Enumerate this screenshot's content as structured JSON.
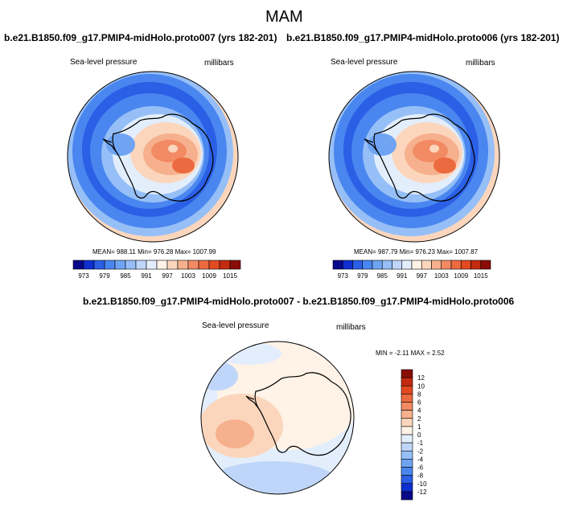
{
  "page": {
    "season": "MAM",
    "left_title": "b.e21.B1850.f09_g17.PMIP4-midHolo.proto007 (yrs 182-201)",
    "right_title": "b.e21.B1850.f09_g17.PMIP4-midHolo.proto006 (yrs 182-201)",
    "diff_title": "b.e21.B1850.f09_g17.PMIP4-midHolo.proto007 - b.e21.B1850.f09_g17.PMIP4-midHolo.proto006"
  },
  "colors": {
    "abs_scale": [
      "#08088a",
      "#0f2fd0",
      "#2a5fe6",
      "#4a86ef",
      "#6fa4f3",
      "#96bff7",
      "#bfd6fa",
      "#e3eefc",
      "#fff2e6",
      "#fbd6bd",
      "#f7b08d",
      "#f28a63",
      "#ec6a3f",
      "#e24a21",
      "#c42a10",
      "#8a0d05"
    ],
    "diff_scale": [
      "#08088a",
      "#0f2fd0",
      "#2a5fe6",
      "#4a86ef",
      "#6fa4f3",
      "#96bff7",
      "#bfd6fa",
      "#e3eefc",
      "#fff2e6",
      "#fbd6bd",
      "#f7b08d",
      "#f28a63",
      "#ec6a3f",
      "#e24a21",
      "#c42a10",
      "#8a0d05"
    ]
  },
  "chart_data": [
    {
      "type": "heatmap",
      "projection": "south-polar-stereographic",
      "title": "b.e21.B1850.f09_g17.PMIP4-midHolo.proto007 (yrs 182-201)",
      "variable": "Sea-level pressure",
      "units": "millibars",
      "stats": "MEAN= 988.11   Min= 976.28   Max= 1007.99",
      "mean": 988.11,
      "min": 976.28,
      "max": 1007.99,
      "colorbar_labels": [
        "973",
        "979",
        "985",
        "991",
        "997",
        "1003",
        "1009",
        "1015"
      ]
    },
    {
      "type": "heatmap",
      "projection": "south-polar-stereographic",
      "title": "b.e21.B1850.f09_g17.PMIP4-midHolo.proto006 (yrs 182-201)",
      "variable": "Sea-level pressure",
      "units": "millibars",
      "stats": "MEAN= 987.79   Min= 976.23   Max= 1007.87",
      "mean": 987.79,
      "min": 976.23,
      "max": 1007.87,
      "colorbar_labels": [
        "973",
        "979",
        "985",
        "991",
        "997",
        "1003",
        "1009",
        "1015"
      ]
    },
    {
      "type": "heatmap",
      "projection": "south-polar-stereographic",
      "title": "b.e21.B1850.f09_g17.PMIP4-midHolo.proto007 - b.e21.B1850.f09_g17.PMIP4-midHolo.proto006",
      "variable": "Sea-level pressure",
      "units": "millibars",
      "stats": "MIN =  -2.11  MAX =    2.52",
      "min": -2.11,
      "max": 2.52,
      "colorbar_labels": [
        "12",
        "10",
        "8",
        "6",
        "4",
        "2",
        "1",
        "0",
        "-1",
        "-2",
        "-4",
        "-6",
        "-8",
        "-10",
        "-12"
      ]
    }
  ]
}
